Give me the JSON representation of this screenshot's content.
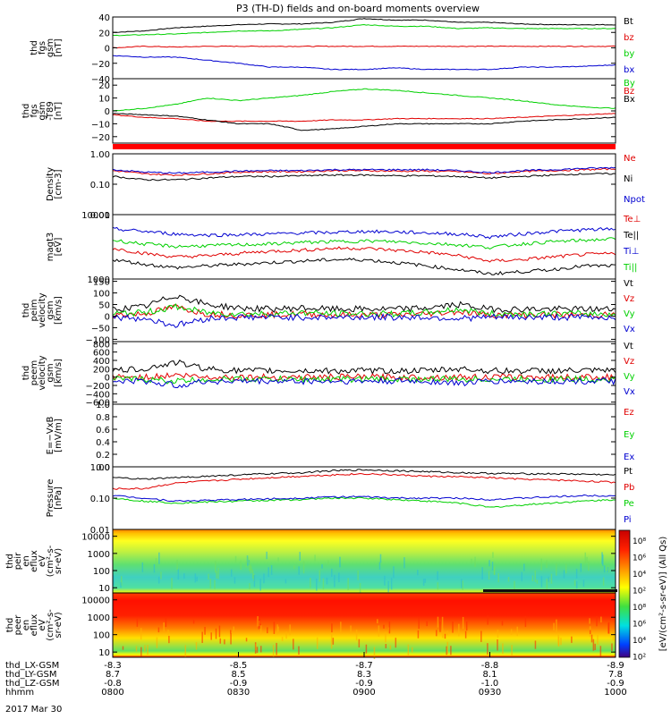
{
  "title": "P3 (TH-D) fields and on-board moments overview",
  "date_label": "2017 Mar 30",
  "xaxis": {
    "row_labels": [
      "thd_LX-GSM",
      "thd_LY-GSM",
      "thd_LZ-GSM",
      "hhmm"
    ],
    "rows": [
      [
        "-8.3",
        "-8.5",
        "-8.7",
        "-8.8",
        "-8.9"
      ],
      [
        "8.7",
        "8.5",
        "8.3",
        "8.1",
        "7.8"
      ],
      [
        "-0.8",
        "-0.9",
        "-0.9",
        "-1.0",
        "-0.9"
      ],
      [
        "0800",
        "0830",
        "0900",
        "0930",
        "1000"
      ]
    ]
  },
  "colorbar_label": "[eV/(cm²-s-sr-eV)] (All Qs)",
  "colorbar_ticks": [
    "10⁸",
    "10⁶",
    "10⁴",
    "10²",
    "10⁸",
    "10⁶",
    "10⁴",
    "10²"
  ],
  "chart_data": [
    {
      "type": "line",
      "ylabel": [
        "thd",
        "fgs",
        "gsm",
        "[nT]"
      ],
      "ylim": [
        -40,
        40
      ],
      "yticks": [
        "40",
        "20",
        "0",
        "−20",
        "−40"
      ],
      "yticks_values": [
        40,
        20,
        0,
        -20,
        -40
      ],
      "series": [
        {
          "name": "Bt",
          "color": "#000000",
          "values": [
            20,
            22,
            26,
            28,
            30,
            31,
            31,
            33,
            38,
            36,
            36,
            33,
            33,
            31,
            30,
            30,
            30
          ]
        },
        {
          "name": "bz",
          "color": "#e00000",
          "values": [
            0,
            2,
            1,
            2,
            2,
            2,
            2,
            2,
            2,
            2,
            2,
            2,
            2,
            2,
            2,
            2,
            2
          ]
        },
        {
          "name": "by",
          "color": "#00d000",
          "values": [
            16,
            17,
            18,
            20,
            22,
            22,
            24,
            26,
            30,
            28,
            28,
            25,
            26,
            25,
            25,
            25,
            25
          ]
        },
        {
          "name": "bx",
          "color": "#0000d0",
          "values": [
            -10,
            -12,
            -12,
            -16,
            -20,
            -25,
            -25,
            -28,
            -28,
            -26,
            -28,
            -28,
            -28,
            -25,
            -25,
            -24,
            -22
          ]
        }
      ]
    },
    {
      "type": "line",
      "ylabel": [
        "thd",
        "fgs",
        "gsm",
        "-T89",
        "[nT]"
      ],
      "ylim": [
        -25,
        25
      ],
      "yticks": [
        "20",
        "10",
        "0",
        "−10",
        "−20"
      ],
      "yticks_values": [
        20,
        10,
        0,
        -10,
        -20
      ],
      "series": [
        {
          "name": "By",
          "color": "#00d000",
          "values": [
            0,
            2,
            5,
            10,
            8,
            10,
            12,
            15,
            17,
            16,
            14,
            12,
            10,
            8,
            5,
            3,
            2
          ]
        },
        {
          "name": "Bz",
          "color": "#e00000",
          "values": [
            -3,
            -5,
            -6,
            -8,
            -8,
            -8,
            -8,
            -7,
            -7,
            -6,
            -6,
            -6,
            -6,
            -5,
            -4,
            -3,
            -2
          ]
        },
        {
          "name": "Bx",
          "color": "#000000",
          "values": [
            -2,
            -3,
            -4,
            -7,
            -10,
            -10,
            -15,
            -14,
            -12,
            -10,
            -10,
            -10,
            -10,
            -8,
            -7,
            -6,
            -5
          ]
        }
      ]
    },
    {
      "type": "line",
      "ylabel": [
        "Density",
        "[cm-3]"
      ],
      "yscale": "log",
      "ylim": [
        0.01,
        1
      ],
      "yticks": [
        "1.00",
        "0.10",
        "0.01"
      ],
      "yticks_values": [
        1,
        0.1,
        0.01
      ],
      "series": [
        {
          "name": "Ne",
          "color": "#e00000",
          "values": [
            0.28,
            0.22,
            0.2,
            0.22,
            0.25,
            0.26,
            0.26,
            0.28,
            0.28,
            0.27,
            0.27,
            0.26,
            0.22,
            0.26,
            0.28,
            0.3,
            0.32
          ]
        },
        {
          "name": "Ni",
          "color": "#000000",
          "values": [
            0.18,
            0.14,
            0.14,
            0.16,
            0.18,
            0.18,
            0.19,
            0.2,
            0.2,
            0.19,
            0.19,
            0.18,
            0.16,
            0.18,
            0.2,
            0.22,
            0.22
          ]
        },
        {
          "name": "Npot",
          "color": "#0000d0",
          "values": [
            0.3,
            0.25,
            0.23,
            0.25,
            0.27,
            0.28,
            0.28,
            0.3,
            0.3,
            0.3,
            0.3,
            0.28,
            0.24,
            0.28,
            0.3,
            0.33,
            0.35
          ]
        }
      ]
    },
    {
      "type": "line",
      "ylabel": [
        "magt3",
        "[eV]"
      ],
      "yscale": "log",
      "ylim": [
        1000,
        10000
      ],
      "yticks": [
        "10000",
        "1000"
      ],
      "yticks_values": [
        10000,
        1000
      ],
      "series": [
        {
          "name": "Te⊥",
          "color": "#e00000",
          "values": [
            3000,
            2500,
            2200,
            2300,
            2500,
            2700,
            2800,
            3000,
            3000,
            2800,
            2600,
            2300,
            1900,
            2000,
            2200,
            2400,
            2500
          ]
        },
        {
          "name": "Te||",
          "color": "#000000",
          "values": [
            2000,
            1700,
            1500,
            1600,
            1700,
            1800,
            1900,
            2000,
            2000,
            1800,
            1600,
            1400,
            1200,
            1300,
            1400,
            1600,
            1600
          ]
        },
        {
          "name": "Ti⊥",
          "color": "#0000d0",
          "values": [
            6000,
            5500,
            5000,
            4800,
            4900,
            5000,
            5200,
            5300,
            5500,
            5400,
            5200,
            5000,
            4500,
            5000,
            5500,
            5800,
            6000
          ]
        },
        {
          "name": "Ti||",
          "color": "#00d000",
          "values": [
            4000,
            3500,
            3200,
            3300,
            3400,
            3500,
            3700,
            3800,
            3900,
            3800,
            3600,
            3400,
            3100,
            3500,
            3800,
            4000,
            4200
          ]
        }
      ]
    },
    {
      "type": "line",
      "ylabel": [
        "thd",
        "peim",
        "velocity",
        "gsm",
        "[km/s]"
      ],
      "ylim": [
        -110,
        160
      ],
      "yticks": [
        "150",
        "100",
        "50",
        "0",
        "−50",
        "−100"
      ],
      "yticks_values": [
        150,
        100,
        50,
        0,
        -50,
        -100
      ],
      "series": [
        {
          "name": "Vt",
          "color": "#000000",
          "values": [
            30,
            40,
            90,
            50,
            35,
            30,
            35,
            30,
            30,
            30,
            35,
            50,
            30,
            30,
            30,
            30,
            30
          ]
        },
        {
          "name": "Vz",
          "color": "#e00000",
          "values": [
            5,
            10,
            40,
            10,
            5,
            5,
            10,
            5,
            5,
            5,
            10,
            20,
            5,
            5,
            5,
            5,
            5
          ]
        },
        {
          "name": "Vy",
          "color": "#00d000",
          "values": [
            10,
            15,
            40,
            15,
            10,
            10,
            15,
            10,
            10,
            10,
            15,
            30,
            10,
            10,
            10,
            10,
            10
          ]
        },
        {
          "name": "Vx",
          "color": "#0000d0",
          "values": [
            -5,
            -10,
            -40,
            -10,
            -5,
            -5,
            -5,
            -5,
            -5,
            -5,
            -5,
            -10,
            -5,
            -5,
            -5,
            -5,
            -5
          ]
        }
      ]
    },
    {
      "type": "line",
      "ylabel": [
        "thd",
        "peem",
        "velocity",
        "gsm",
        "[km/s]"
      ],
      "ylim": [
        -650,
        850
      ],
      "yticks": [
        "800",
        "600",
        "400",
        "200",
        "0",
        "−200",
        "−400",
        "−600"
      ],
      "yticks_values": [
        800,
        600,
        400,
        200,
        0,
        -200,
        -400,
        -600
      ],
      "series": [
        {
          "name": "Vt",
          "color": "#000000",
          "values": [
            150,
            200,
            350,
            200,
            150,
            150,
            150,
            150,
            150,
            150,
            150,
            200,
            150,
            150,
            150,
            150,
            150
          ]
        },
        {
          "name": "Vz",
          "color": "#e00000",
          "values": [
            0,
            0,
            50,
            0,
            0,
            0,
            0,
            0,
            0,
            0,
            0,
            0,
            0,
            0,
            0,
            0,
            0
          ]
        },
        {
          "name": "Vy",
          "color": "#00d000",
          "values": [
            -50,
            -50,
            -100,
            -50,
            -50,
            -50,
            -50,
            -50,
            -50,
            -50,
            -50,
            -50,
            -50,
            -50,
            -50,
            -50,
            -50
          ]
        },
        {
          "name": "Vx",
          "color": "#0000d0",
          "values": [
            -100,
            -100,
            -200,
            -100,
            -100,
            -100,
            -100,
            -100,
            -100,
            -100,
            -100,
            -150,
            -100,
            -100,
            -100,
            -100,
            -100
          ]
        }
      ]
    },
    {
      "type": "line",
      "ylabel": [
        "E=−VxB",
        "[mV/m]"
      ],
      "ylim": [
        0,
        1
      ],
      "yticks": [
        "1.0",
        "0.8",
        "0.6",
        "0.4",
        "0.2",
        "0.0"
      ],
      "yticks_values": [
        1,
        0.8,
        0.6,
        0.4,
        0.2,
        0
      ],
      "series": [
        {
          "name": "Ez",
          "color": "#e00000",
          "values": []
        },
        {
          "name": "Ey",
          "color": "#00d000",
          "values": []
        },
        {
          "name": "Ex",
          "color": "#0000d0",
          "values": []
        }
      ]
    },
    {
      "type": "line",
      "ylabel": [
        "Pressure",
        "[nPa]"
      ],
      "yscale": "log",
      "ylim": [
        0.01,
        1
      ],
      "yticks": [
        "1.00",
        "0.10",
        "0.01"
      ],
      "yticks_values": [
        1,
        0.1,
        0.01
      ],
      "series": [
        {
          "name": "Pt",
          "color": "#000000",
          "values": [
            0.45,
            0.4,
            0.45,
            0.5,
            0.55,
            0.6,
            0.65,
            0.75,
            0.8,
            0.75,
            0.7,
            0.65,
            0.62,
            0.6,
            0.6,
            0.58,
            0.55
          ]
        },
        {
          "name": "Pb",
          "color": "#e00000",
          "values": [
            0.2,
            0.2,
            0.3,
            0.35,
            0.4,
            0.45,
            0.5,
            0.55,
            0.6,
            0.55,
            0.5,
            0.48,
            0.45,
            0.4,
            0.38,
            0.35,
            0.32
          ]
        },
        {
          "name": "Pe",
          "color": "#00d000",
          "values": [
            0.1,
            0.08,
            0.07,
            0.075,
            0.08,
            0.085,
            0.09,
            0.1,
            0.1,
            0.09,
            0.08,
            0.07,
            0.05,
            0.06,
            0.07,
            0.08,
            0.09
          ]
        },
        {
          "name": "Pi",
          "color": "#0000d0",
          "values": [
            0.12,
            0.1,
            0.08,
            0.085,
            0.09,
            0.095,
            0.1,
            0.11,
            0.11,
            0.1,
            0.1,
            0.1,
            0.09,
            0.1,
            0.11,
            0.12,
            0.12
          ]
        }
      ]
    },
    {
      "type": "heatmap",
      "ylabel": [
        "thd",
        "peir",
        "en",
        "eflux",
        "eV",
        "(cm²-s-",
        "sr-eV)"
      ],
      "yscale": "log",
      "ylim": [
        5,
        25000
      ],
      "yticks": [
        "10000",
        "1000",
        "100",
        "10"
      ],
      "yticks_values": [
        10000,
        1000,
        100,
        10
      ]
    },
    {
      "type": "heatmap",
      "ylabel": [
        "thd",
        "peer",
        "en",
        "eflux",
        "eV",
        "(cm²-s-",
        "sr-eV)"
      ],
      "yscale": "log",
      "ylim": [
        5,
        25000
      ],
      "yticks": [
        "10000",
        "1000",
        "100",
        "10"
      ],
      "yticks_values": [
        10000,
        1000,
        100,
        10
      ]
    }
  ]
}
